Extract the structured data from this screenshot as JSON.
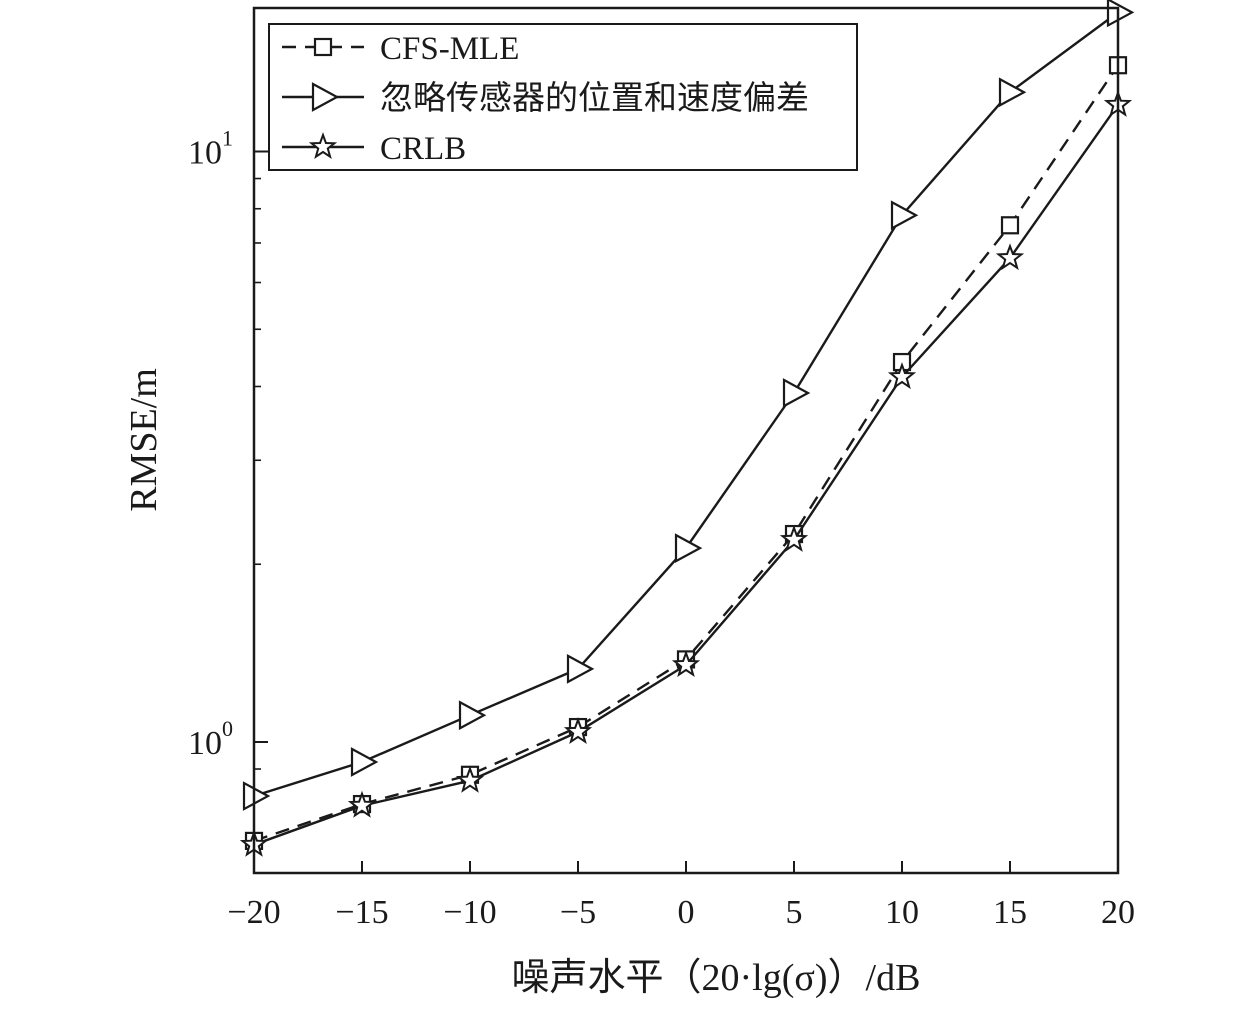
{
  "chart_data": {
    "type": "line",
    "x": [
      -20,
      -15,
      -10,
      -5,
      0,
      5,
      10,
      15,
      20
    ],
    "xlim": [
      -20,
      20
    ],
    "xticks": [
      -20,
      -15,
      -10,
      -5,
      0,
      5,
      10,
      15,
      20
    ],
    "xtick_labels": [
      "−20",
      "−15",
      "−10",
      "−5",
      "0",
      "5",
      "10",
      "15",
      "20"
    ],
    "xlabel": "噪声水平（20·lg(σ)）/dB",
    "ylabel": "RMSE/m",
    "yscale": "log",
    "ylim": [
      0.6,
      17.5
    ],
    "ytick_labels": [
      {
        "value": 1,
        "base": "10",
        "exp": "0"
      },
      {
        "value": 10,
        "base": "10",
        "exp": "1"
      }
    ],
    "grid": false,
    "legend_position": "top-left",
    "series": [
      {
        "name": "CFS-MLE",
        "style": "dashed",
        "marker": "square",
        "color": "#1a1a1a",
        "values": [
          0.68,
          0.785,
          0.88,
          1.06,
          1.38,
          2.25,
          4.4,
          7.5,
          14.0
        ]
      },
      {
        "name": "忽略传感器的位置和速度偏差",
        "style": "solid",
        "marker": "triangle-right",
        "color": "#1a1a1a",
        "values": [
          0.81,
          0.925,
          1.11,
          1.33,
          2.13,
          3.9,
          7.8,
          12.6,
          17.2
        ]
      },
      {
        "name": "CRLB",
        "style": "solid",
        "marker": "star",
        "color": "#1a1a1a",
        "values": [
          0.67,
          0.78,
          0.86,
          1.04,
          1.35,
          2.2,
          4.15,
          6.6,
          12.0
        ]
      }
    ]
  }
}
